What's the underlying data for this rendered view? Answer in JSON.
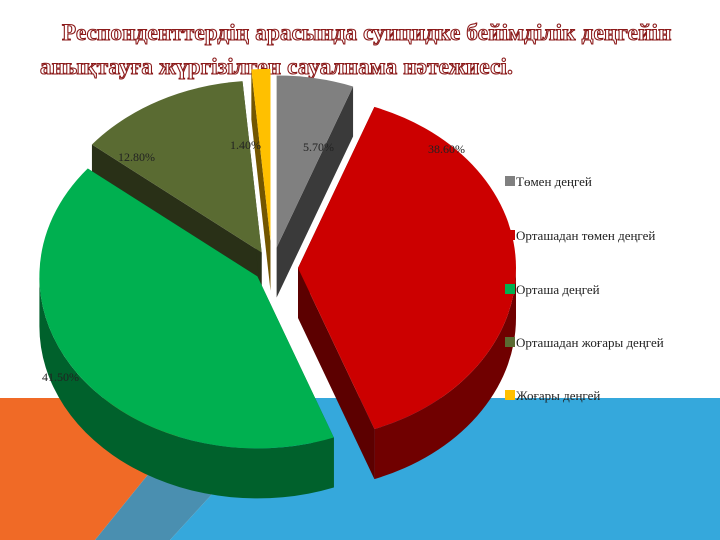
{
  "title": {
    "line1": "Респонденттердің арасында суицидке бейімділік деңгейін",
    "line2": "анықтауға жүргізілген сауалнама нәтежиесі."
  },
  "colors": {
    "background": "#ffffff",
    "deco_blue": "#35a8dc",
    "deco_orange": "#f06a26",
    "deco_steel": "#4a8fb0"
  },
  "chart_data": {
    "type": "pie",
    "style": "3d-exploded",
    "legend_position": "right",
    "series": [
      {
        "values": [
          5.7,
          38.6,
          41.5,
          12.8,
          1.4
        ],
        "labels": [
          "5.70%",
          "38.60%",
          "41.50%",
          "12.80%",
          "1.40%"
        ]
      }
    ],
    "categories": [
      "Төмен деңгей",
      "Орташадан төмен деңгей",
      "Орташа деңгей",
      "Орташадан жоғары деңгей",
      "Жоғары деңгей"
    ],
    "colors": [
      "#808080",
      "#cc0000",
      "#00b050",
      "#5a6b32",
      "#ffc000"
    ]
  }
}
